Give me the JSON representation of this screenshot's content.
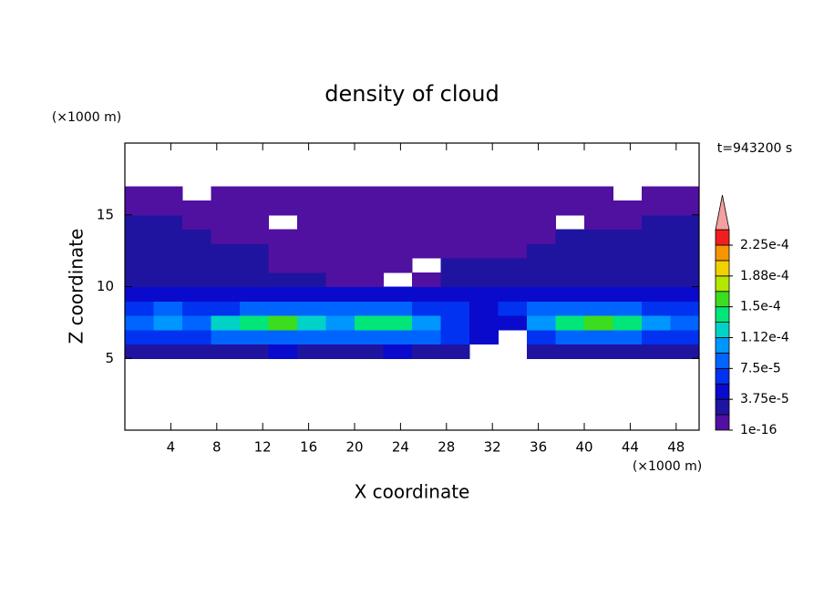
{
  "chart_data": {
    "type": "contour",
    "title": "density of cloud",
    "x_label": "X coordinate",
    "y_label": "Z coordinate",
    "x_unit": "(×1000 m)",
    "y_unit": "(×1000 m)",
    "time_label": "t=943200 s",
    "xlim": [
      0,
      50
    ],
    "ylim": [
      0,
      20
    ],
    "xticks": [
      4,
      8,
      12,
      16,
      20,
      24,
      28,
      32,
      36,
      40,
      44,
      48
    ],
    "yticks": [
      5,
      10,
      15
    ],
    "x": [
      1.25,
      3.75,
      6.25,
      8.75,
      11.25,
      13.75,
      16.25,
      18.75,
      21.25,
      23.75,
      26.25,
      28.75,
      31.25,
      33.75,
      36.25,
      38.75,
      41.25,
      43.75,
      46.25,
      48.75
    ],
    "z": [
      5.5,
      6.5,
      7.5,
      8.5,
      9.5,
      10.5,
      11.5,
      12.5,
      13.5,
      14.5,
      15.5,
      16.5
    ],
    "values": [
      [
        3e-05,
        3e-05,
        2e-05,
        3e-05,
        3e-05,
        4e-05,
        3e-05,
        3e-05,
        3e-05,
        4e-05,
        3e-05,
        3e-05,
        null,
        null,
        2e-05,
        3e-05,
        3e-05,
        3e-05,
        3e-05,
        3e-05
      ],
      [
        6e-05,
        7e-05,
        6e-05,
        9e-05,
        9e-05,
        9e-05,
        9e-05,
        8e-05,
        8e-05,
        9e-05,
        8e-05,
        6e-05,
        4e-05,
        null,
        6e-05,
        9e-05,
        9e-05,
        9e-05,
        7e-05,
        6e-05
      ],
      [
        9e-05,
        0.00011,
        8e-05,
        0.00012,
        0.000145,
        0.00015,
        0.00013,
        0.00011,
        0.000135,
        0.000145,
        0.00011,
        7e-05,
        4e-05,
        5e-05,
        0.00011,
        0.000145,
        0.00016,
        0.00014,
        0.0001,
        8e-05
      ],
      [
        7e-05,
        8e-05,
        6e-05,
        7e-05,
        9e-05,
        9e-05,
        9e-05,
        8e-05,
        9e-05,
        9e-05,
        7e-05,
        6e-05,
        5e-05,
        6e-05,
        8e-05,
        9e-05,
        9e-05,
        8e-05,
        7e-05,
        7e-05
      ],
      [
        5e-05,
        4e-05,
        5e-05,
        4e-05,
        5e-05,
        5e-05,
        4e-05,
        4e-05,
        5e-05,
        4e-05,
        4e-05,
        5e-05,
        4e-05,
        5e-05,
        5e-05,
        4e-05,
        5e-05,
        4e-05,
        5e-05,
        4e-05
      ],
      [
        3e-05,
        3e-05,
        3e-05,
        3e-05,
        3e-05,
        3e-05,
        2e-05,
        1e-05,
        1e-05,
        null,
        1e-05,
        3e-05,
        2e-05,
        3e-05,
        3e-05,
        3e-05,
        3e-05,
        3e-05,
        3e-05,
        3e-05
      ],
      [
        2e-05,
        3e-05,
        2e-05,
        2e-05,
        2e-05,
        1e-05,
        1e-05,
        1e-05,
        1e-05,
        1e-05,
        null,
        2e-05,
        2e-05,
        2e-05,
        2e-05,
        2e-05,
        3e-05,
        2e-05,
        2e-05,
        2e-05
      ],
      [
        2e-05,
        2e-05,
        2e-05,
        2e-05,
        2e-05,
        1e-05,
        1e-05,
        1e-05,
        1e-05,
        1e-05,
        1e-05,
        1e-05,
        1e-05,
        1e-05,
        2e-05,
        2e-05,
        2e-05,
        2e-05,
        2e-05,
        2e-05
      ],
      [
        2e-05,
        2e-05,
        2e-05,
        1e-05,
        1e-05,
        1e-05,
        1e-05,
        1e-05,
        1e-05,
        1e-05,
        1e-05,
        1e-05,
        1e-05,
        1e-05,
        1e-05,
        2e-05,
        2e-05,
        2e-05,
        2e-05,
        2e-05
      ],
      [
        2e-05,
        2e-05,
        1e-05,
        1e-05,
        1e-05,
        null,
        1e-05,
        1e-05,
        1e-05,
        1e-05,
        1e-05,
        1e-05,
        1e-05,
        1e-05,
        1e-05,
        null,
        1e-05,
        1e-05,
        2e-05,
        2e-05
      ],
      [
        1e-05,
        1e-05,
        1e-05,
        1e-05,
        1e-05,
        1e-05,
        1e-05,
        1e-05,
        1e-05,
        1e-05,
        1e-05,
        1e-05,
        1e-05,
        1e-05,
        1e-05,
        1e-05,
        1e-05,
        1e-05,
        1e-05,
        1e-05
      ],
      [
        1e-05,
        1e-05,
        null,
        1e-05,
        1e-05,
        1e-05,
        1e-05,
        1e-05,
        1e-05,
        1e-05,
        1e-05,
        1e-05,
        1e-05,
        1e-05,
        1e-05,
        1e-05,
        1e-05,
        null,
        1e-05,
        1e-05
      ]
    ],
    "levels": [
      1e-16,
      1.875e-05,
      3.75e-05,
      5.625e-05,
      7.5e-05,
      9.375e-05,
      0.0001125,
      0.00013125,
      0.00015,
      0.00016875,
      0.0001875,
      0.00020625,
      0.000225
    ],
    "level_ticks": [
      1e-16,
      {
        "value": 3.75e-05,
        "label": "3.75e-5"
      },
      {
        "value": 7.5e-05,
        "label": "7.5e-5"
      },
      {
        "value": 0.0001125,
        "label": "1.12e-4"
      },
      {
        "value": 0.00015,
        "label": "1.5e-4"
      },
      {
        "value": 0.0001875,
        "label": "1.88e-4"
      },
      {
        "value": 0.000225,
        "label": "2.25e-4"
      }
    ],
    "colors": [
      "#5010a0",
      "#1e14a0",
      "#0a0acd",
      "#0032f0",
      "#0064ff",
      "#0096ff",
      "#00d2c8",
      "#00e678",
      "#3cdc1e",
      "#b4e600",
      "#f0d200",
      "#f59600",
      "#f01e1e"
    ],
    "extend_color": "#f5a0a0"
  }
}
